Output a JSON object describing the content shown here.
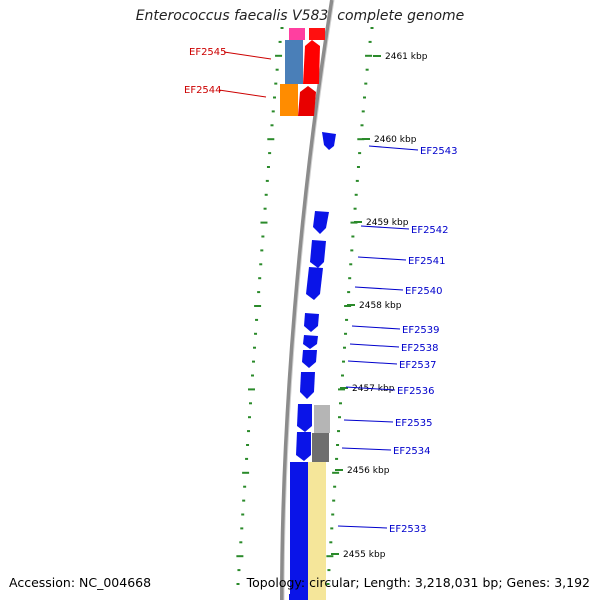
{
  "title": "Enterococcus faecalis V583, complete genome",
  "footer": {
    "accession": "Accession: NC_004668",
    "summary": "Topology: circular; Length: 3,218,031 bp; Genes: 3,192"
  },
  "colors": {
    "backbone": "#8c8c8c",
    "tick": "#2a8a2a",
    "forward_label": "#cc0000",
    "reverse_label": "#0000cc",
    "gene_blue": "#0a14e8"
  },
  "scale_labels": [
    "2461 kbp",
    "2460 kbp",
    "2459 kbp",
    "2458 kbp",
    "2457 kbp",
    "2456 kbp",
    "2455 kbp"
  ],
  "genes_forward": [
    {
      "id": "EF2545",
      "color": "#4a7fb8"
    },
    {
      "id": "EF2544",
      "color": "#ff8c00"
    }
  ],
  "genes_reverse": [
    {
      "id": "EF2543"
    },
    {
      "id": "EF2542"
    },
    {
      "id": "EF2541"
    },
    {
      "id": "EF2540"
    },
    {
      "id": "EF2539"
    },
    {
      "id": "EF2538"
    },
    {
      "id": "EF2537"
    },
    {
      "id": "EF2536"
    },
    {
      "id": "EF2535"
    },
    {
      "id": "EF2534"
    },
    {
      "id": "EF2533"
    }
  ]
}
